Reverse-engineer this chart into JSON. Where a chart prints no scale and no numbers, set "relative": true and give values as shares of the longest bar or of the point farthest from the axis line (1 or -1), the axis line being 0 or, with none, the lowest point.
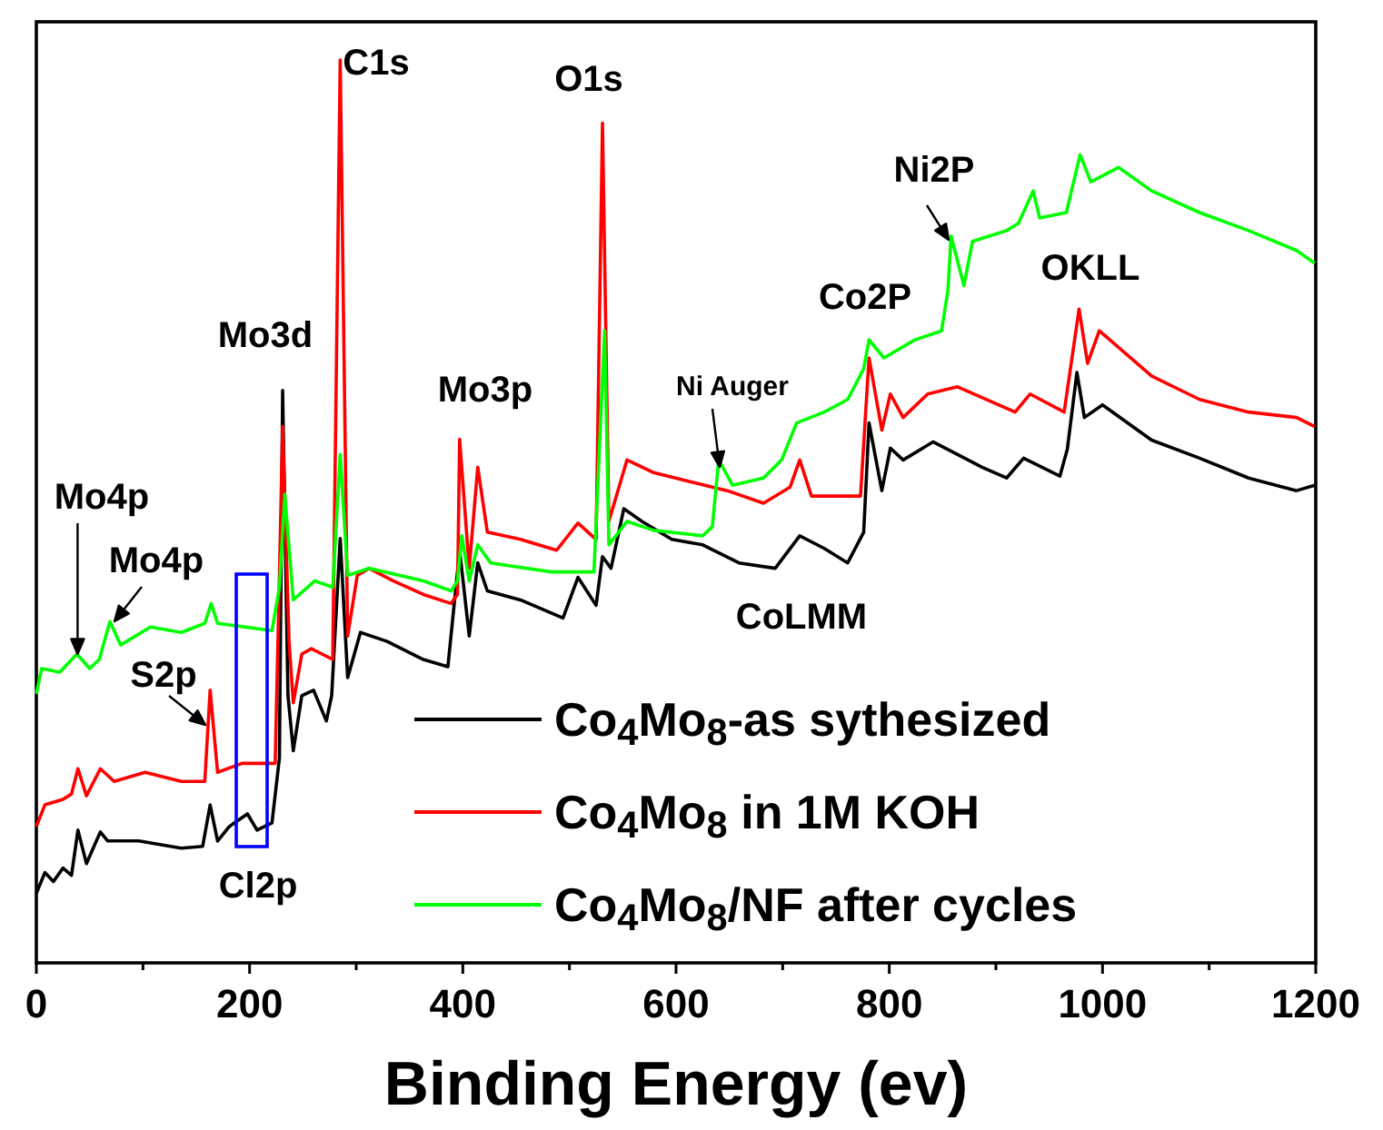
{
  "chart_data": {
    "type": "line",
    "relative": true,
    "xlabel": "Binding Energy (ev)",
    "xlim": [
      0,
      1200
    ],
    "xticks": [
      0,
      {
        "value": 100,
        "label": null
      },
      200,
      {
        "value": 300,
        "label": null
      },
      400,
      {
        "value": 500,
        "label": null
      },
      600,
      {
        "value": 700,
        "label": null
      },
      800,
      {
        "value": 900,
        "label": null
      },
      1000,
      {
        "value": 1100,
        "label": null
      },
      1200
    ],
    "legend": "bottom right",
    "grid": false,
    "marker": "none",
    "line_style": "solid",
    "series": [
      {
        "name": "Co$_{4}$Mo$_{8}$-as sythesized",
        "color": "#000000",
        "x": [
          0,
          8,
          16,
          25,
          33,
          39,
          47,
          60,
          67,
          96,
          136,
          156,
          163,
          170,
          181,
          198,
          207,
          221,
          228,
          231,
          236,
          241,
          249,
          260,
          272,
          277,
          285,
          292,
          304,
          329,
          363,
          386,
          397,
          406,
          414,
          423,
          454,
          494,
          508,
          525,
          531,
          539,
          551,
          568,
          596,
          625,
          659,
          693,
          716,
          739,
          761,
          776,
          781,
          793,
          801,
          813,
          841,
          887,
          910,
          926,
          960,
          967,
          976,
          983,
          1000,
          1046,
          1091,
          1137,
          1182,
          1199
        ],
        "values": [
          0.077,
          0.1,
          0.09,
          0.105,
          0.097,
          0.147,
          0.11,
          0.145,
          0.135,
          0.135,
          0.127,
          0.129,
          0.175,
          0.135,
          0.151,
          0.165,
          0.147,
          0.155,
          0.227,
          0.634,
          0.296,
          0.235,
          0.296,
          0.302,
          0.268,
          0.296,
          0.47,
          0.316,
          0.366,
          0.356,
          0.336,
          0.328,
          0.457,
          0.362,
          0.443,
          0.412,
          0.402,
          0.382,
          0.427,
          0.396,
          0.45,
          0.437,
          0.503,
          0.489,
          0.469,
          0.463,
          0.443,
          0.437,
          0.473,
          0.459,
          0.443,
          0.477,
          0.598,
          0.523,
          0.57,
          0.557,
          0.577,
          0.549,
          0.537,
          0.559,
          0.539,
          0.569,
          0.654,
          0.604,
          0.618,
          0.579,
          0.559,
          0.537,
          0.523,
          0.529
        ]
      },
      {
        "name": "Co$_{4}$Mo$_{8}$ in 1M KOH",
        "color": "#ff0000",
        "x": [
          0,
          8,
          25,
          33,
          39,
          47,
          60,
          73,
          102,
          136,
          158,
          163,
          170,
          193,
          224,
          228,
          231,
          237,
          241,
          249,
          258,
          278,
          285,
          292,
          301,
          312,
          335,
          363,
          389,
          395,
          397,
          406,
          414,
          423,
          454,
          488,
          508,
          525,
          531,
          537,
          554,
          579,
          613,
          648,
          682,
          707,
          716,
          727,
          773,
          781,
          793,
          801,
          813,
          836,
          864,
          918,
          932,
          964,
          978,
          986,
          997,
          1046,
          1091,
          1137,
          1182,
          1199
        ],
        "values": [
          0.151,
          0.175,
          0.181,
          0.187,
          0.215,
          0.185,
          0.215,
          0.201,
          0.211,
          0.201,
          0.201,
          0.302,
          0.211,
          0.221,
          0.221,
          0.429,
          0.594,
          0.356,
          0.288,
          0.342,
          0.348,
          0.336,
          1.0,
          0.362,
          0.429,
          0.437,
          0.423,
          0.408,
          0.398,
          0.408,
          0.58,
          0.437,
          0.549,
          0.477,
          0.469,
          0.457,
          0.487,
          0.469,
          0.93,
          0.489,
          0.557,
          0.543,
          0.533,
          0.523,
          0.509,
          0.527,
          0.557,
          0.517,
          0.517,
          0.67,
          0.59,
          0.63,
          0.604,
          0.63,
          0.638,
          0.61,
          0.63,
          0.61,
          0.724,
          0.664,
          0.7,
          0.65,
          0.624,
          0.61,
          0.604,
          0.594
        ]
      },
      {
        "name": "Co$_{4}$Mo$_{8}$/NF after cycles",
        "color": "#00ff00",
        "x": [
          0,
          5,
          22,
          38,
          50,
          59,
          69,
          79,
          107,
          136,
          158,
          164,
          170,
          221,
          228,
          233,
          241,
          261,
          278,
          285,
          292,
          312,
          363,
          389,
          395,
          399,
          406,
          414,
          426,
          483,
          523,
          533,
          537,
          554,
          579,
          625,
          634,
          640,
          653,
          682,
          699,
          713,
          739,
          761,
          776,
          781,
          795,
          824,
          849,
          855,
          858,
          870,
          878,
          910,
          921,
          935,
          941,
          966,
          979,
          989,
          1015,
          1046,
          1091,
          1137,
          1182,
          1199
        ],
        "values": [
          0.298,
          0.326,
          0.322,
          0.342,
          0.326,
          0.336,
          0.378,
          0.352,
          0.372,
          0.366,
          0.376,
          0.398,
          0.376,
          0.368,
          0.416,
          0.519,
          0.402,
          0.423,
          0.416,
          0.563,
          0.429,
          0.437,
          0.423,
          0.412,
          0.423,
          0.473,
          0.423,
          0.463,
          0.443,
          0.433,
          0.433,
          0.7,
          0.463,
          0.489,
          0.479,
          0.473,
          0.483,
          0.557,
          0.529,
          0.537,
          0.557,
          0.598,
          0.61,
          0.624,
          0.658,
          0.69,
          0.67,
          0.69,
          0.7,
          0.745,
          0.805,
          0.75,
          0.799,
          0.811,
          0.819,
          0.855,
          0.825,
          0.831,
          0.895,
          0.865,
          0.881,
          0.855,
          0.831,
          0.811,
          0.789,
          0.775
        ]
      }
    ],
    "annotations": [
      "C1s",
      "O1s",
      "Ni2P",
      "OKLL",
      "Co2P",
      "Ni Auger",
      "Mo3d",
      "Mo3p",
      "CoLMM",
      "Mo4p",
      "Mo4p",
      "S2p",
      "Cl2p"
    ]
  }
}
